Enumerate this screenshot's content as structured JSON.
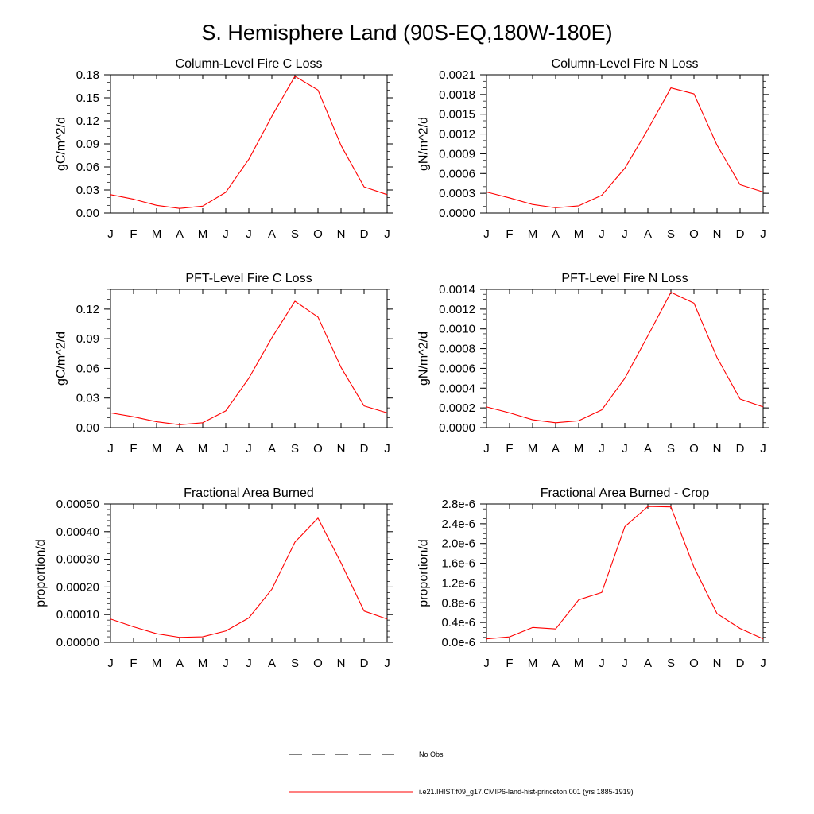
{
  "figure": {
    "title": "S. Hemisphere Land (90S-EQ,180W-180E)"
  },
  "legend": {
    "items": [
      {
        "label": "No Obs",
        "style": "dashed",
        "color": "#000000"
      },
      {
        "label": "i.e21.IHIST.f09_g17.CMIP6-land-hist-princeton.001 (yrs 1885-1919)",
        "style": "solid",
        "color": "#ff0000"
      }
    ]
  },
  "chart_data": [
    {
      "type": "line",
      "title": "Column-Level Fire C Loss",
      "xlabel": "",
      "ylabel": "gC/m^2/d",
      "categories": [
        "J",
        "F",
        "M",
        "A",
        "M",
        "J",
        "J",
        "A",
        "S",
        "O",
        "N",
        "D",
        "J"
      ],
      "ylim": [
        0,
        0.18
      ],
      "yticks": [
        0,
        0.03,
        0.06,
        0.09,
        0.12,
        0.15,
        0.18
      ],
      "ytick_labels": [
        "0.00",
        "0.03",
        "0.06",
        "0.09",
        "0.12",
        "0.15",
        "0.18"
      ],
      "minor_per": 3,
      "series": [
        {
          "color": "#ff0000",
          "values": [
            0.024,
            0.018,
            0.01,
            0.006,
            0.009,
            0.027,
            0.07,
            0.126,
            0.178,
            0.16,
            0.088,
            0.034,
            0.024
          ]
        }
      ]
    },
    {
      "type": "line",
      "title": "Column-Level Fire N Loss",
      "xlabel": "",
      "ylabel": "gN/m^2/d",
      "categories": [
        "J",
        "F",
        "M",
        "A",
        "M",
        "J",
        "J",
        "A",
        "S",
        "O",
        "N",
        "D",
        "J"
      ],
      "ylim": [
        0,
        0.0021
      ],
      "yticks": [
        0,
        0.0003,
        0.0006,
        0.0009,
        0.0012,
        0.0015,
        0.0018,
        0.0021
      ],
      "ytick_labels": [
        "0.0000",
        "0.0003",
        "0.0006",
        "0.0009",
        "0.0012",
        "0.0015",
        "0.0018",
        "0.0021"
      ],
      "minor_per": 3,
      "series": [
        {
          "color": "#ff0000",
          "values": [
            0.00032,
            0.00023,
            0.00013,
            8e-05,
            0.00011,
            0.00027,
            0.00068,
            0.00127,
            0.0019,
            0.00181,
            0.00103,
            0.00043,
            0.00032
          ]
        }
      ]
    },
    {
      "type": "line",
      "title": "PFT-Level Fire C Loss",
      "xlabel": "",
      "ylabel": "gC/m^2/d",
      "categories": [
        "J",
        "F",
        "M",
        "A",
        "M",
        "J",
        "J",
        "A",
        "S",
        "O",
        "N",
        "D",
        "J"
      ],
      "ylim": [
        0,
        0.14
      ],
      "yticks": [
        0,
        0.03,
        0.06,
        0.09,
        0.12
      ],
      "ytick_labels": [
        "0.00",
        "0.03",
        "0.06",
        "0.09",
        "0.12"
      ],
      "minor_per": 3,
      "series": [
        {
          "color": "#ff0000",
          "values": [
            0.015,
            0.011,
            0.006,
            0.003,
            0.005,
            0.017,
            0.05,
            0.091,
            0.128,
            0.112,
            0.061,
            0.022,
            0.015
          ]
        }
      ]
    },
    {
      "type": "line",
      "title": "PFT-Level Fire N Loss",
      "xlabel": "",
      "ylabel": "gN/m^2/d",
      "categories": [
        "J",
        "F",
        "M",
        "A",
        "M",
        "J",
        "J",
        "A",
        "S",
        "O",
        "N",
        "D",
        "J"
      ],
      "ylim": [
        0,
        0.0014
      ],
      "yticks": [
        0,
        0.0002,
        0.0004,
        0.0006,
        0.0008,
        0.001,
        0.0012,
        0.0014
      ],
      "ytick_labels": [
        "0.0000",
        "0.0002",
        "0.0004",
        "0.0006",
        "0.0008",
        "0.0010",
        "0.0012",
        "0.0014"
      ],
      "minor_per": 4,
      "series": [
        {
          "color": "#ff0000",
          "values": [
            0.00021,
            0.00015,
            8e-05,
            5e-05,
            7e-05,
            0.00018,
            0.0005,
            0.00093,
            0.00137,
            0.00126,
            0.00071,
            0.00029,
            0.00021
          ]
        }
      ]
    },
    {
      "type": "line",
      "title": "Fractional Area Burned",
      "xlabel": "",
      "ylabel": "proportion/d",
      "categories": [
        "J",
        "F",
        "M",
        "A",
        "M",
        "J",
        "J",
        "A",
        "S",
        "O",
        "N",
        "D",
        "J"
      ],
      "ylim": [
        0,
        0.0005
      ],
      "yticks": [
        0,
        0.0001,
        0.0002,
        0.0003,
        0.0004,
        0.0005
      ],
      "ytick_labels": [
        "0.00000",
        "0.00010",
        "0.00020",
        "0.00030",
        "0.00040",
        "0.00050"
      ],
      "minor_per": 5,
      "series": [
        {
          "color": "#ff0000",
          "values": [
            8.4e-05,
            5.6e-05,
            3.1e-05,
            1.8e-05,
            2e-05,
            4.1e-05,
            8.8e-05,
            0.000192,
            0.000362,
            0.000449,
            0.000287,
            0.000113,
            8.4e-05
          ]
        }
      ]
    },
    {
      "type": "line",
      "title": "Fractional Area Burned - Crop",
      "xlabel": "",
      "ylabel": "proportion/d",
      "categories": [
        "J",
        "F",
        "M",
        "A",
        "M",
        "J",
        "J",
        "A",
        "S",
        "O",
        "N",
        "D",
        "J"
      ],
      "ylim": [
        0,
        2.8e-06
      ],
      "yticks": [
        0,
        4e-07,
        8e-07,
        1.2e-06,
        1.6e-06,
        2e-06,
        2.4e-06,
        2.8e-06
      ],
      "ytick_labels": [
        "0.0e-6",
        "0.4e-6",
        "0.8e-6",
        "1.2e-6",
        "1.6e-6",
        "2.0e-6",
        "2.4e-6",
        "2.8e-6"
      ],
      "minor_per": 4,
      "series": [
        {
          "color": "#ff0000",
          "values": [
            7e-08,
            1.1e-07,
            3e-07,
            2.7e-07,
            8.6e-07,
            1.01e-06,
            2.34e-06,
            2.75e-06,
            2.74e-06,
            1.52e-06,
            5.8e-07,
            2.8e-07,
            7e-08
          ]
        }
      ]
    }
  ]
}
